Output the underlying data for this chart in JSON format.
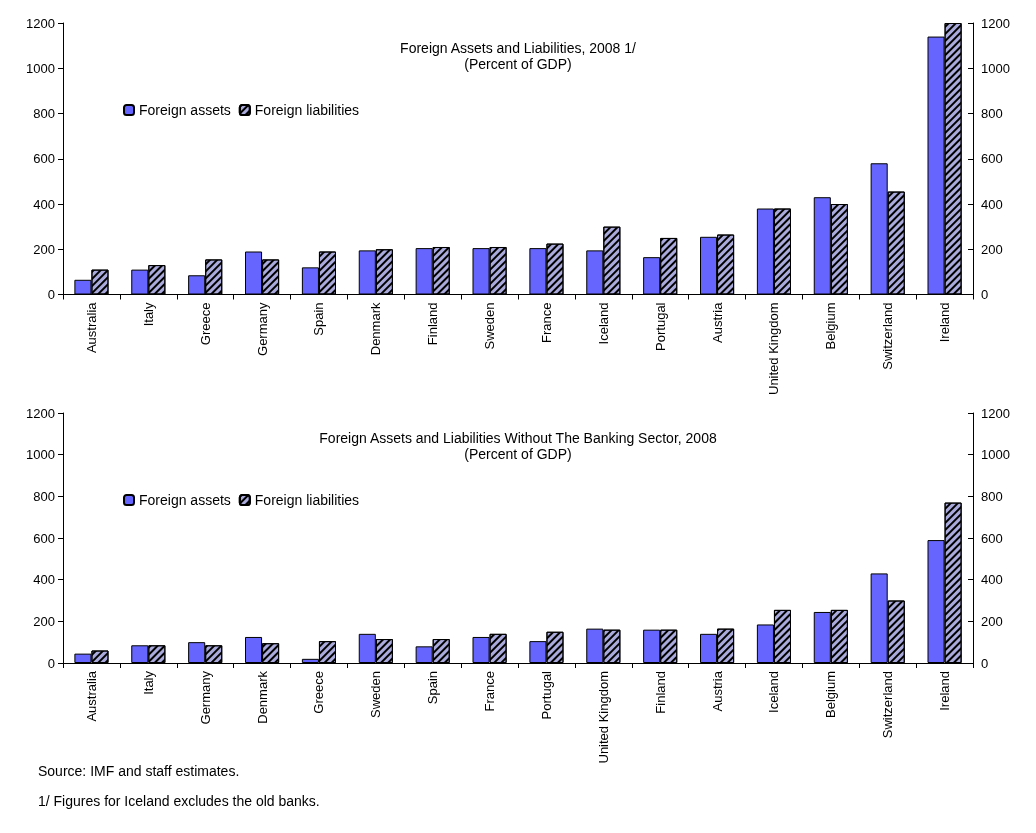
{
  "chart_data": [
    {
      "type": "bar",
      "title": "Foreign Assets and Liabilities, 2008 1/",
      "subtitle": "(Percent of GDP)",
      "categories": [
        "Australia",
        "Italy",
        "Greece",
        "Germany",
        "Spain",
        "Denmark",
        "Finland",
        "Sweden",
        "France",
        "Iceland",
        "Portugal",
        "Austria",
        "United Kingdom",
        "Belgium",
        "Switzerland",
        "Ireland"
      ],
      "series": [
        {
          "name": "Foreign assets",
          "color": "#6666ff",
          "values": [
            65,
            110,
            85,
            190,
            120,
            195,
            205,
            205,
            205,
            195,
            165,
            255,
            380,
            430,
            580,
            1140
          ]
        },
        {
          "name": "Foreign liabilities",
          "color": "#aaaadd",
          "values": [
            110,
            130,
            155,
            155,
            190,
            200,
            210,
            210,
            225,
            300,
            250,
            265,
            380,
            400,
            455,
            1200
          ]
        }
      ],
      "ylim": [
        0,
        1200
      ],
      "yticks": [
        0,
        200,
        400,
        600,
        800,
        1000,
        1200
      ],
      "y2lim": [
        0,
        1200
      ],
      "y2ticks": [
        0,
        200,
        400,
        600,
        800,
        1000,
        1200
      ],
      "grid": false,
      "legend": "top left"
    },
    {
      "type": "bar",
      "title": "Foreign Assets and Liabilities Without The Banking Sector, 2008",
      "subtitle": "(Percent of GDP)",
      "categories": [
        "Australia",
        "Italy",
        "Germany",
        "Denmark",
        "Greece",
        "Sweden",
        "Spain",
        "France",
        "Portugal",
        "United Kingdom",
        "Finland",
        "Austria",
        "Iceland",
        "Belgium",
        "Switzerland",
        "Ireland"
      ],
      "series": [
        {
          "name": "Foreign assets",
          "color": "#6666ff",
          "values": [
            45,
            85,
            100,
            125,
            20,
            140,
            80,
            125,
            105,
            165,
            160,
            140,
            185,
            245,
            430,
            590
          ]
        },
        {
          "name": "Foreign liabilities",
          "color": "#aaaadd",
          "values": [
            60,
            85,
            85,
            95,
            105,
            115,
            115,
            140,
            150,
            160,
            160,
            165,
            255,
            255,
            300,
            770
          ]
        }
      ],
      "ylim": [
        0,
        1200
      ],
      "yticks": [
        0,
        200,
        400,
        600,
        800,
        1000,
        1200
      ],
      "y2lim": [
        0,
        1200
      ],
      "y2ticks": [
        0,
        200,
        400,
        600,
        800,
        1000,
        1200
      ],
      "grid": false,
      "legend": "top left",
      "annotations": [
        "Source: IMF and staff estimates.",
        "1/ Figures for Iceland excludes the old banks."
      ]
    }
  ]
}
